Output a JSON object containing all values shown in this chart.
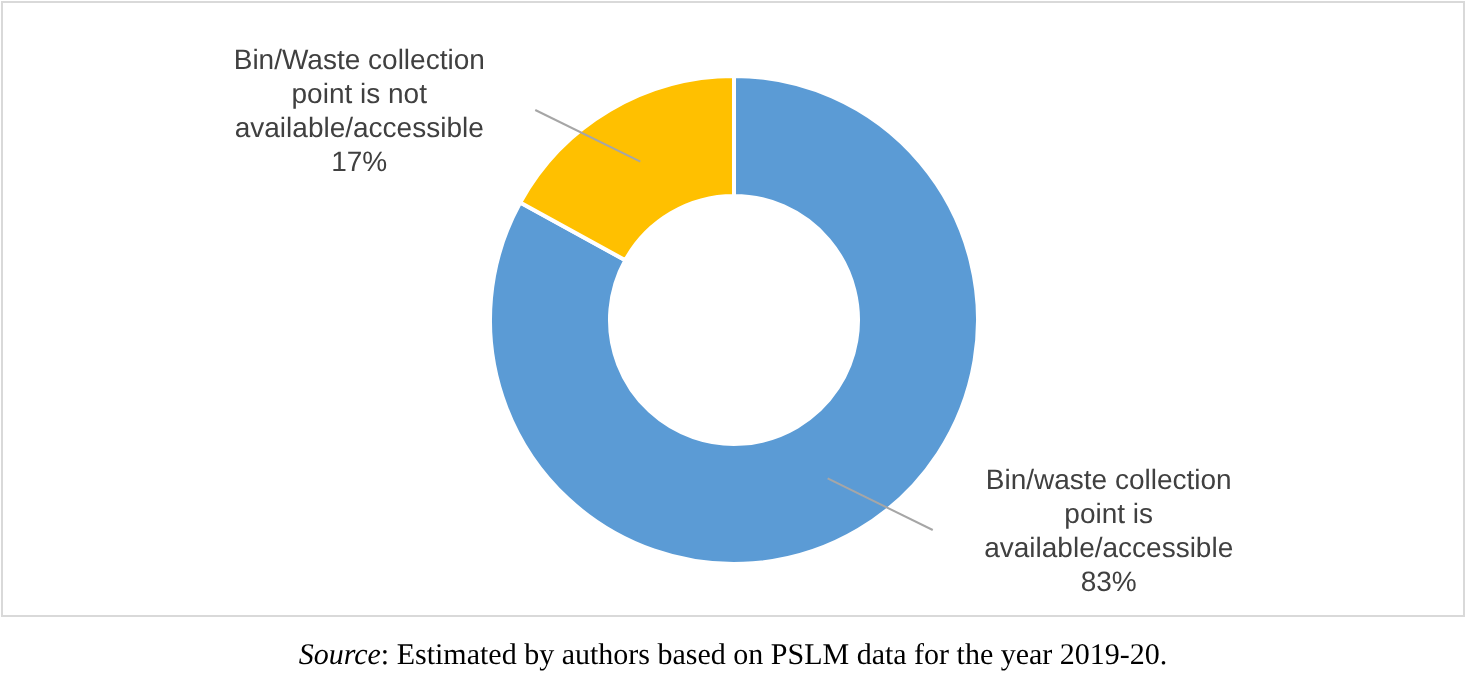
{
  "chart_data": {
    "type": "donut",
    "categories": [
      "Bin/waste collection point is available/accessible",
      "Bin/Waste collection point is not available/accessible"
    ],
    "values": [
      83,
      17
    ],
    "colors": [
      "#5b9bd5",
      "#ffc000"
    ],
    "value_labels": [
      "83%",
      "17%"
    ],
    "legend": false,
    "annotations": [
      "Source: Estimated by authors based on PSLM data for the year 2019-20."
    ]
  }
}
